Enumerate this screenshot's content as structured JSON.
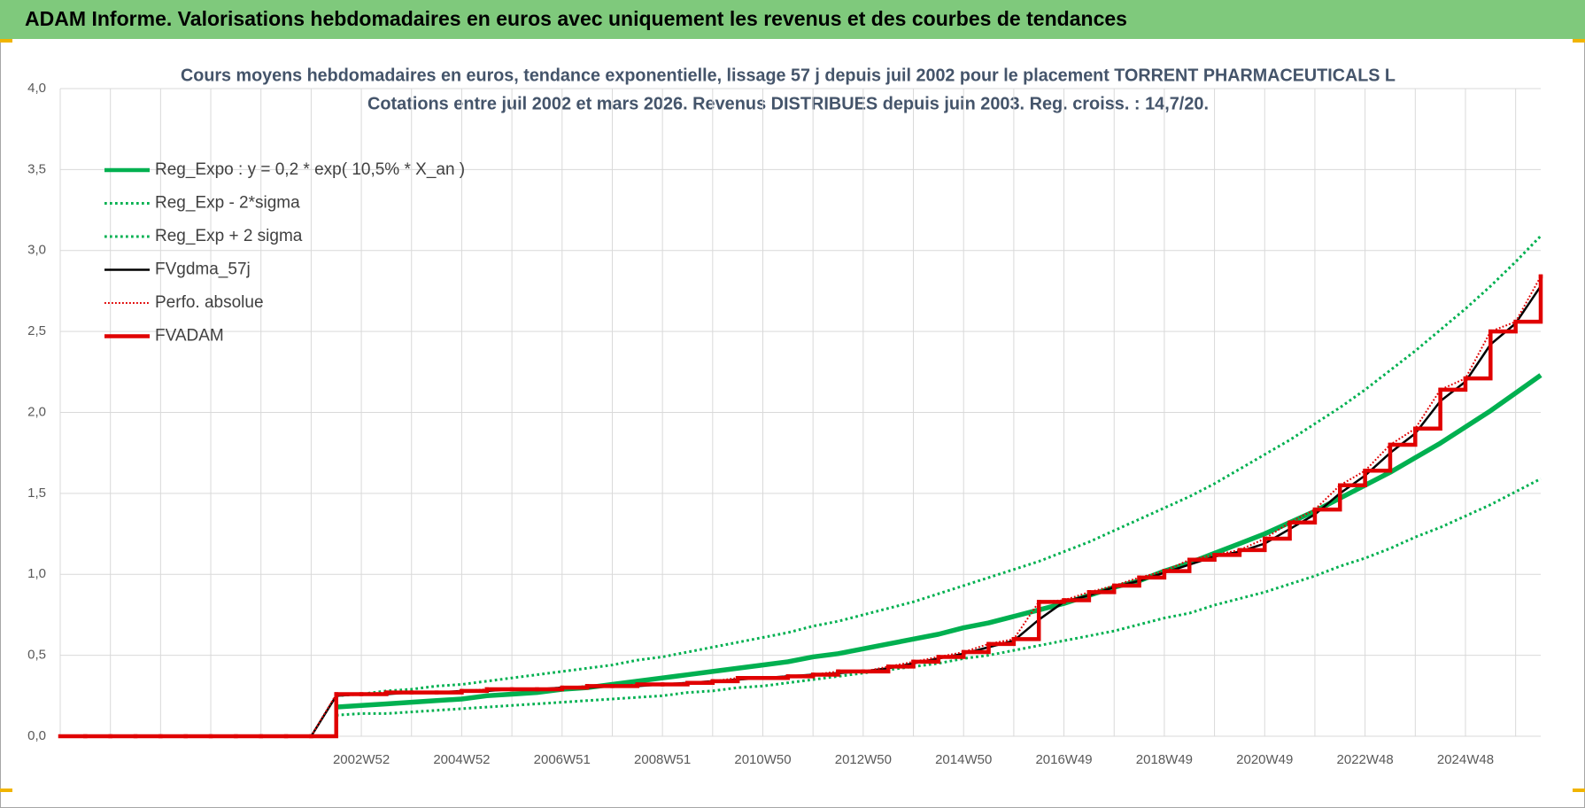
{
  "header": {
    "title": "ADAM Informe. Valorisations hebdomadaires en euros avec uniquement les revenus et des courbes de tendances"
  },
  "chart_data": {
    "type": "line",
    "title": "Cours moyens hebdomadaires en euros, tendance exponentielle, lissage 57 j depuis juil 2002 pour le placement TORRENT PHARMACEUTICALS L",
    "subtitle": "Cotations entre juil 2002 et mars 2026. Revenus DISTRIBUES depuis juin 2003. Reg. croiss. : 14,7/20.",
    "categories": [
      null,
      null,
      null,
      null,
      null,
      null,
      null,
      null,
      null,
      null,
      null,
      null,
      "2002W52",
      null,
      null,
      null,
      "2004W52",
      null,
      null,
      null,
      "2006W51",
      null,
      null,
      null,
      "2008W51",
      null,
      null,
      null,
      "2010W50",
      null,
      null,
      null,
      "2012W50",
      null,
      null,
      null,
      "2014W50",
      null,
      null,
      null,
      "2016W49",
      null,
      null,
      null,
      "2018W49",
      null,
      null,
      null,
      "2020W49",
      null,
      null,
      null,
      "2022W48",
      null,
      null,
      null,
      "2024W48",
      null,
      null,
      null
    ],
    "ylim": [
      0,
      4
    ],
    "yticks": [
      {
        "value": 0,
        "label": "0,0"
      },
      {
        "value": 0.5,
        "label": "0,5"
      },
      {
        "value": 1,
        "label": "1,0"
      },
      {
        "value": 1.5,
        "label": "1,5"
      },
      {
        "value": 2,
        "label": "2,0"
      },
      {
        "value": 2.5,
        "label": "2,5"
      },
      {
        "value": 3,
        "label": "3,0"
      },
      {
        "value": 3.5,
        "label": "3,5"
      },
      {
        "value": 4,
        "label": "4,0"
      }
    ],
    "grid": true,
    "legend": "top-left",
    "series": [
      {
        "name": "Reg_Expo : y = 0,2 * exp( 10,5% *  X_an )",
        "color": "#00b050",
        "dash": "solid",
        "values": [
          null,
          null,
          null,
          null,
          null,
          null,
          null,
          null,
          null,
          null,
          null,
          0.18,
          0.19,
          0.2,
          0.21,
          0.22,
          0.23,
          0.25,
          0.26,
          0.27,
          0.29,
          0.3,
          0.32,
          0.34,
          0.36,
          0.38,
          0.4,
          0.42,
          0.44,
          0.46,
          0.49,
          0.51,
          0.54,
          0.57,
          0.6,
          0.63,
          0.67,
          0.7,
          0.74,
          0.78,
          0.82,
          0.87,
          0.92,
          0.96,
          1.02,
          1.07,
          1.13,
          1.19,
          1.25,
          1.32,
          1.39,
          1.47,
          1.55,
          1.63,
          1.72,
          1.81,
          1.91,
          2.01,
          2.12,
          2.23
        ]
      },
      {
        "name": "Reg_Exp - 2*sigma",
        "color": "#00b050",
        "dash": "dotted",
        "values": [
          null,
          null,
          null,
          null,
          null,
          null,
          null,
          null,
          null,
          null,
          null,
          0.13,
          0.14,
          0.14,
          0.15,
          0.16,
          0.17,
          0.18,
          0.19,
          0.2,
          0.21,
          0.22,
          0.23,
          0.24,
          0.25,
          0.27,
          0.28,
          0.3,
          0.31,
          0.33,
          0.35,
          0.37,
          0.39,
          0.41,
          0.43,
          0.45,
          0.48,
          0.5,
          0.53,
          0.56,
          0.59,
          0.62,
          0.65,
          0.69,
          0.73,
          0.76,
          0.81,
          0.85,
          0.89,
          0.94,
          0.99,
          1.05,
          1.1,
          1.16,
          1.23,
          1.29,
          1.36,
          1.43,
          1.51,
          1.59
        ]
      },
      {
        "name": "Reg_Exp + 2 sigma",
        "color": "#00b050",
        "dash": "dotted",
        "values": [
          null,
          null,
          null,
          null,
          null,
          null,
          null,
          null,
          null,
          null,
          null,
          0.25,
          0.26,
          0.28,
          0.29,
          0.31,
          0.32,
          0.34,
          0.36,
          0.38,
          0.4,
          0.42,
          0.44,
          0.47,
          0.49,
          0.52,
          0.55,
          0.58,
          0.61,
          0.64,
          0.68,
          0.71,
          0.75,
          0.79,
          0.83,
          0.88,
          0.93,
          0.98,
          1.03,
          1.08,
          1.14,
          1.2,
          1.27,
          1.34,
          1.41,
          1.48,
          1.56,
          1.65,
          1.74,
          1.83,
          1.93,
          2.03,
          2.14,
          2.26,
          2.38,
          2.51,
          2.64,
          2.78,
          2.93,
          3.09
        ]
      },
      {
        "name": "FVgdma_57j",
        "color": "#000000",
        "dash": "solid",
        "values": [
          0,
          0,
          0,
          0,
          0,
          0,
          0,
          0,
          0,
          0,
          0,
          0.25,
          0.26,
          0.26,
          0.27,
          0.27,
          0.28,
          0.28,
          0.29,
          0.29,
          0.3,
          0.3,
          0.31,
          0.31,
          0.32,
          0.33,
          0.34,
          0.35,
          0.36,
          0.37,
          0.38,
          0.39,
          0.4,
          0.42,
          0.45,
          0.48,
          0.51,
          0.55,
          0.59,
          0.72,
          0.83,
          0.87,
          0.92,
          0.96,
          1.01,
          1.06,
          1.11,
          1.14,
          1.19,
          1.28,
          1.37,
          1.5,
          1.61,
          1.75,
          1.87,
          2.07,
          2.19,
          2.42,
          2.55,
          2.78
        ]
      },
      {
        "name": "Perfo. absolue",
        "color": "#e00000",
        "dash": "dotted",
        "values": [
          0,
          0,
          0,
          0,
          0,
          0,
          0,
          0,
          0,
          0,
          0,
          0.26,
          0.26,
          0.27,
          0.27,
          0.27,
          0.28,
          0.29,
          0.29,
          0.29,
          0.3,
          0.31,
          0.31,
          0.32,
          0.32,
          0.33,
          0.34,
          0.36,
          0.36,
          0.37,
          0.38,
          0.4,
          0.4,
          0.43,
          0.46,
          0.49,
          0.52,
          0.57,
          0.6,
          0.83,
          0.84,
          0.89,
          0.93,
          0.98,
          1.02,
          1.09,
          1.12,
          1.15,
          1.22,
          1.32,
          1.4,
          1.55,
          1.64,
          1.8,
          1.9,
          2.14,
          2.21,
          2.5,
          2.56,
          2.84
        ]
      },
      {
        "name": "FVADAM",
        "color": "#e00000",
        "dash": "solid",
        "step": true,
        "values": [
          0,
          0,
          0,
          0,
          0,
          0,
          0,
          0,
          0,
          0,
          0,
          0.26,
          0.26,
          0.27,
          0.27,
          0.27,
          0.28,
          0.29,
          0.29,
          0.29,
          0.3,
          0.31,
          0.31,
          0.32,
          0.32,
          0.33,
          0.34,
          0.36,
          0.36,
          0.37,
          0.38,
          0.4,
          0.4,
          0.43,
          0.46,
          0.49,
          0.52,
          0.57,
          0.6,
          0.83,
          0.84,
          0.89,
          0.93,
          0.98,
          1.02,
          1.09,
          1.12,
          1.15,
          1.22,
          1.32,
          1.4,
          1.55,
          1.64,
          1.8,
          1.9,
          2.14,
          2.21,
          2.5,
          2.56,
          2.84
        ]
      }
    ]
  }
}
